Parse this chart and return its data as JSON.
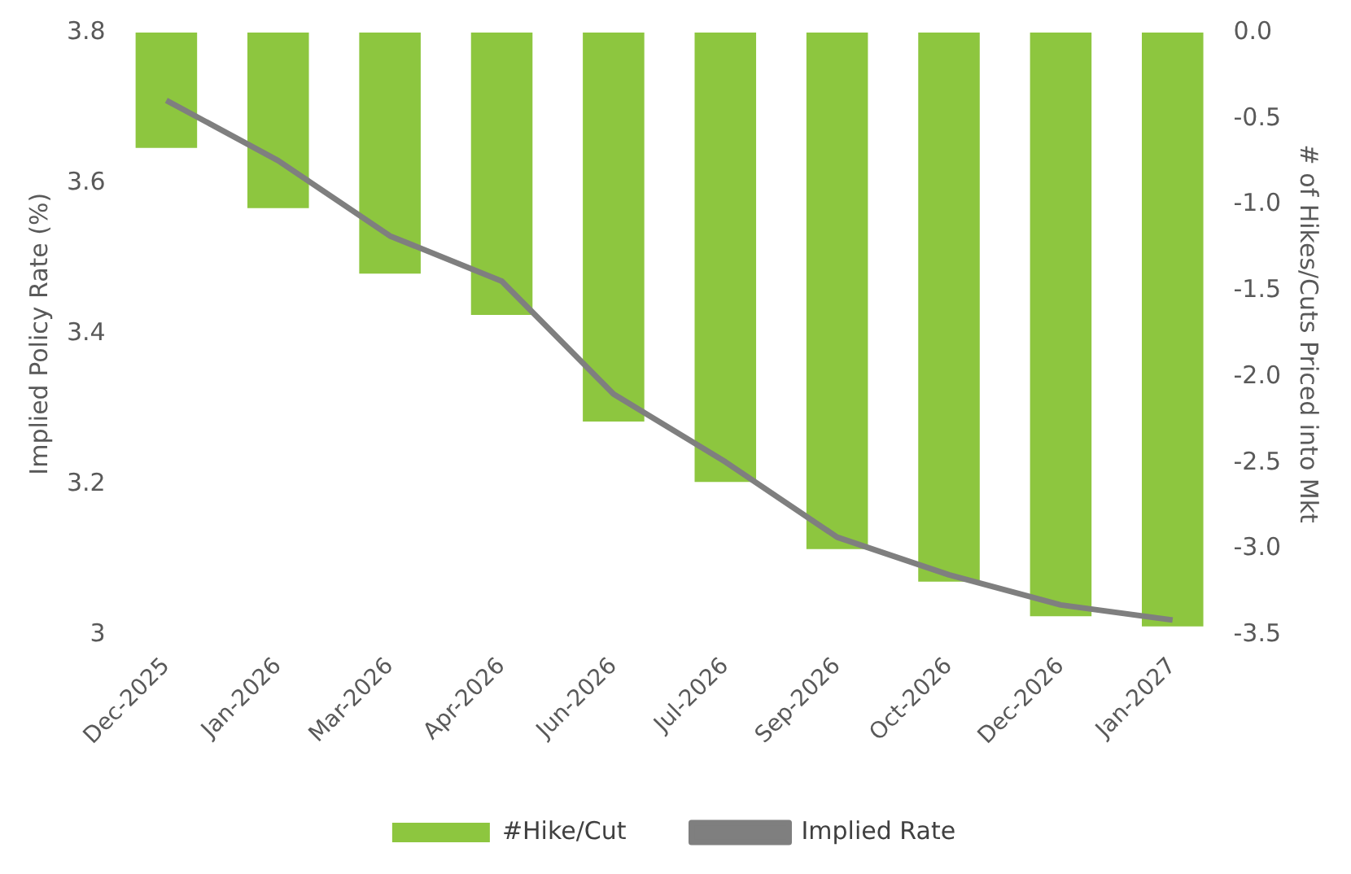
{
  "chart_data": {
    "type": "bar",
    "categories": [
      "Dec-2025",
      "Jan-2026",
      "Mar-2026",
      "Apr-2026",
      "Jun-2026",
      "Jul-2026",
      "Sep-2026",
      "Oct-2026",
      "Dec-2026",
      "Jan-2027"
    ],
    "series": [
      {
        "name": "#Hike/Cut",
        "axis": "y2",
        "color": "#8dc63f",
        "values": [
          -0.67,
          -1.02,
          -1.4,
          -1.64,
          -2.26,
          -2.61,
          -3.0,
          -3.19,
          -3.39,
          -3.45
        ]
      },
      {
        "name": "Implied Rate",
        "type": "line",
        "axis": "y",
        "color": "#7f7f7f",
        "values": [
          3.71,
          3.63,
          3.53,
          3.47,
          3.32,
          3.23,
          3.13,
          3.08,
          3.04,
          3.02
        ]
      }
    ],
    "ylabel": "Implied Policy Rate (%)",
    "y2label": "# of Hikes/Cuts Priced into Mkt",
    "ylim": [
      3,
      3.8
    ],
    "yticks": [
      3,
      3.2,
      3.4,
      3.6,
      3.8
    ],
    "y2lim": [
      -3.5,
      0
    ],
    "y2ticks": [
      {
        "value": -3.5,
        "label": "-3.5"
      },
      {
        "value": -3,
        "label": "-3.0"
      },
      -2.5,
      {
        "value": -2,
        "label": "-2.0"
      },
      -1.5,
      {
        "value": -1,
        "label": "-1.0"
      },
      -0.5,
      {
        "value": 0,
        "label": "0.0"
      }
    ],
    "grid": false,
    "legend": "bottom",
    "marker": "none",
    "line_style": "solid"
  }
}
